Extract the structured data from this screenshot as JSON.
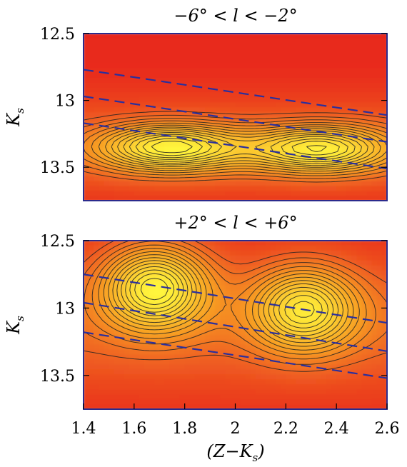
{
  "chart_data": [
    {
      "type": "heatmap",
      "title": "−6° < l < −2°",
      "xlabel": "",
      "ylabel": "K",
      "ylabel_sub": "s",
      "xlim": [
        1.4,
        2.6
      ],
      "ylim": [
        13.75,
        12.5
      ],
      "y_ticks": [
        "12.5",
        "13",
        "13.5"
      ],
      "y_tick_values": [
        12.5,
        13,
        13.5
      ],
      "contours": true,
      "density_peaks": [
        {
          "x": 1.74,
          "y": 13.35,
          "strength": 1.0
        },
        {
          "x": 2.33,
          "y": 13.36,
          "strength": 0.95
        }
      ],
      "dashed_lines": [
        {
          "x": [
            1.4,
            2.6
          ],
          "y": [
            12.77,
            13.11
          ]
        },
        {
          "x": [
            1.4,
            2.6
          ],
          "y": [
            12.97,
            13.31
          ]
        },
        {
          "x": [
            1.4,
            2.6
          ],
          "y": [
            13.17,
            13.51
          ]
        }
      ]
    },
    {
      "type": "heatmap",
      "title": "+2° < l < +6°",
      "xlabel": "(Z−K",
      "xlabel_sub": "s",
      "xlabel_close": ")",
      "ylabel": "K",
      "ylabel_sub": "s",
      "xlim": [
        1.4,
        2.6
      ],
      "ylim": [
        13.75,
        12.5
      ],
      "x_ticks": [
        "1.4",
        "1.6",
        "1.8",
        "2",
        "2.2",
        "2.4",
        "2.6"
      ],
      "x_tick_values": [
        1.4,
        1.6,
        1.8,
        2.0,
        2.2,
        2.4,
        2.6
      ],
      "y_ticks": [
        "12.5",
        "13",
        "13.5"
      ],
      "y_tick_values": [
        12.5,
        13,
        13.5
      ],
      "contours": true,
      "density_peaks": [
        {
          "x": 1.68,
          "y": 12.84,
          "strength": 1.0
        },
        {
          "x": 2.27,
          "y": 13.0,
          "strength": 0.85
        }
      ],
      "dashed_lines": [
        {
          "x": [
            1.4,
            2.6
          ],
          "y": [
            12.75,
            13.11
          ]
        },
        {
          "x": [
            1.4,
            2.6
          ],
          "y": [
            12.96,
            13.32
          ]
        },
        {
          "x": [
            1.4,
            2.6
          ],
          "y": [
            13.18,
            13.52
          ]
        }
      ]
    }
  ],
  "colors": {
    "low": "#e8281e",
    "mid": "#f79a22",
    "high": "#fff63c",
    "contour": "#222222",
    "dashed": "#2a2f9e",
    "frame": "#2b2b8c"
  }
}
